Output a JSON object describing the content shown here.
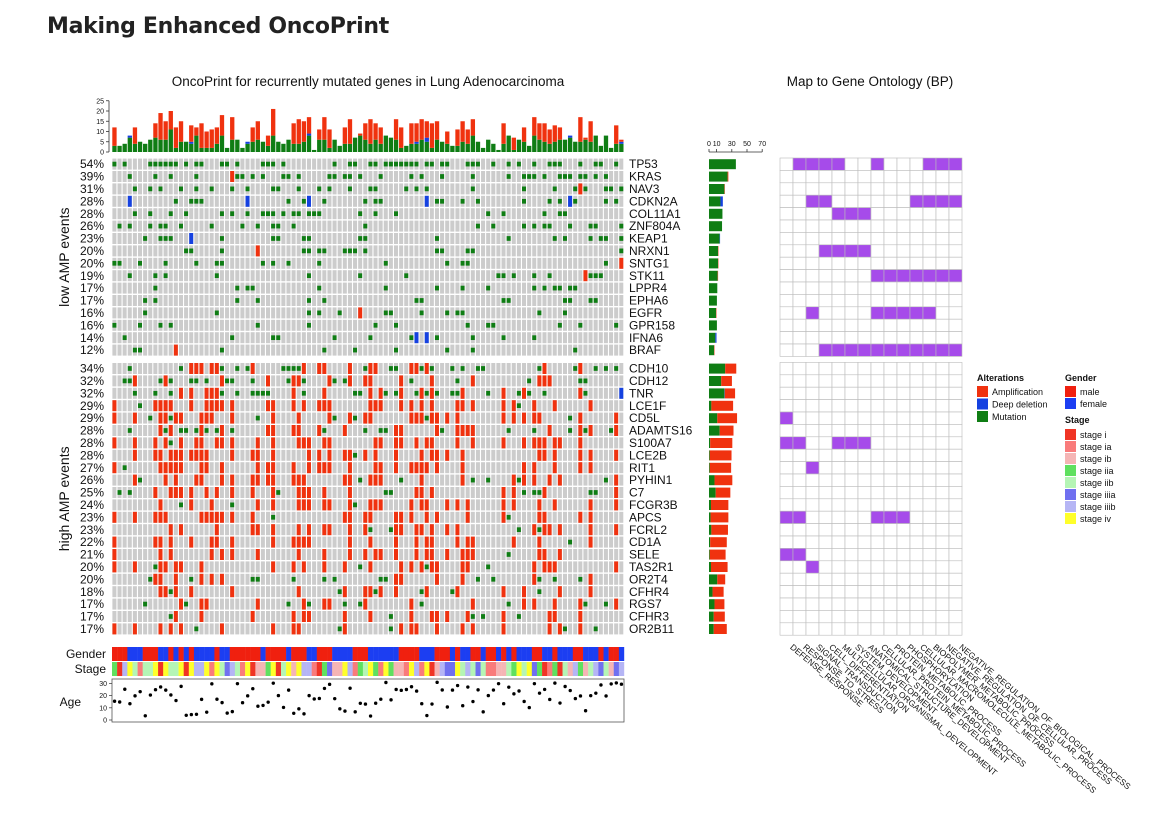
{
  "page": {
    "title": "Making Enhanced OncoPrint"
  },
  "chart_data": [
    {
      "type": "heatmap",
      "title": "OncoPrint for recurrently mutated genes in Lung Adenocarcinoma",
      "n_samples": 100,
      "groups": [
        {
          "label": "low AMP events",
          "genes": [
            "TP53",
            "KRAS",
            "NAV3",
            "CDKN2A",
            "COL11A1",
            "ZNF804A",
            "KEAP1",
            "NRXN1",
            "SNTG1",
            "STK11",
            "LPPR4",
            "EPHA6",
            "EGFR",
            "GPR158",
            "IFNA6",
            "BRAF"
          ],
          "pct": [
            "54%",
            "39%",
            "31%",
            "28%",
            "28%",
            "26%",
            "23%",
            "20%",
            "20%",
            "19%",
            "17%",
            "17%",
            "16%",
            "16%",
            "14%",
            "12%"
          ],
          "amp": [
            0,
            2,
            1,
            0,
            0,
            0,
            0,
            1,
            1,
            1,
            0,
            0,
            1,
            0,
            0,
            1
          ],
          "del": [
            0,
            0,
            0,
            6,
            0,
            0,
            1,
            0,
            0,
            0,
            0,
            0,
            0,
            0,
            3,
            0
          ],
          "mut": [
            68,
            47,
            39,
            29,
            34,
            33,
            27,
            23,
            23,
            22,
            21,
            20,
            18,
            20,
            16,
            13
          ]
        },
        {
          "label": "high AMP events",
          "genes": [
            "CDH10",
            "CDH12",
            "TNR",
            "LCE1F",
            "CD5L",
            "ADAMTS16",
            "S100A7",
            "LCE2B",
            "RIT1",
            "PYHIN1",
            "C7",
            "FCGR3B",
            "APCS",
            "FCRL2",
            "CD1A",
            "SELE",
            "TAS2R1",
            "OR2T4",
            "CFHR4",
            "RGS7",
            "CFHR3",
            "OR2B11"
          ],
          "pct": [
            "34%",
            "32%",
            "32%",
            "29%",
            "29%",
            "28%",
            "28%",
            "28%",
            "27%",
            "26%",
            "25%",
            "24%",
            "23%",
            "23%",
            "22%",
            "21%",
            "20%",
            "20%",
            "18%",
            "17%",
            "17%",
            "17%"
          ],
          "amp": [
            28,
            27,
            26,
            55,
            50,
            35,
            56,
            55,
            54,
            45,
            37,
            44,
            45,
            42,
            42,
            40,
            42,
            20,
            28,
            25,
            28,
            33
          ],
          "del": [
            0,
            0,
            1,
            0,
            0,
            0,
            0,
            0,
            0,
            0,
            0,
            0,
            0,
            0,
            0,
            0,
            0,
            0,
            0,
            0,
            0,
            0
          ],
          "mut": [
            41,
            31,
            39,
            6,
            21,
            27,
            3,
            2,
            2,
            14,
            17,
            5,
            4,
            6,
            3,
            2,
            5,
            21,
            9,
            14,
            12,
            12
          ]
        }
      ],
      "bar_axis_ticks": [
        "0",
        "10",
        "30",
        "50",
        "70"
      ],
      "top_axis_ticks": [
        "0",
        "5",
        "10",
        "15",
        "20",
        "25"
      ],
      "annotations": {
        "gender": {
          "label": "Gender",
          "levels": [
            "male",
            "female"
          ],
          "colors": [
            "#f0200f",
            "#1c3ef2"
          ]
        },
        "stage": {
          "label": "Stage",
          "levels": [
            "stage i",
            "stage ia",
            "stage ib",
            "stage iia",
            "stage iib",
            "stage iiia",
            "stage iiib",
            "stage iv"
          ],
          "colors": [
            "#f03425",
            "#f97b7b",
            "#f5b5b5",
            "#5fe05f",
            "#b5f5b5",
            "#7070f0",
            "#b5b5f5",
            "#ffff2a"
          ]
        },
        "age": {
          "label": "Age",
          "ticks": [
            "0",
            "10",
            "20",
            "30"
          ],
          "ylim": [
            0,
            32
          ]
        }
      },
      "legend": {
        "alterations": {
          "title": "Alterations",
          "items": [
            {
              "label": "Amplification",
              "color": "#f0320f"
            },
            {
              "label": "Deep deletion",
              "color": "#1541e0"
            },
            {
              "label": "Mutation",
              "color": "#0f7d14"
            }
          ]
        },
        "gender_title": "Gender",
        "stage_title": "Stage"
      },
      "colors": {
        "background": "#cccccc",
        "amp": "#f0320f",
        "del": "#1541e0",
        "mut": "#0f7d14"
      }
    },
    {
      "type": "table",
      "title": "Map to Gene Ontology (BP)",
      "columns": [
        "DEFENSE_RESPONSE",
        "RESPONSE_TO_STRESS",
        "SIGNAL_TRANSDUCTION",
        "CELL_DIFFERENTIATION",
        "MULTICELLULAR_ORGANISMAL_DEVELOPMENT",
        "SYSTEM_DEVELOPMENT",
        "ANATOMICAL_STRUCTURE_DEVELOPMENT",
        "CELLULAR_PROTEIN_METABOLIC_PROCESS",
        "PROTEIN_METABOLIC_PROCESS",
        "PHOSPHORYLATION",
        "CELLULAR_MACROMOLECULE_METABOLIC_PROCESS",
        "BIOPOLYMER_METABOLIC_PROCESS",
        "NEGATIVE_REGULATION_OF_CELLULAR_PROCESS",
        "NEGATIVE_REGULATION_OF_BIOLOGICAL_PROCESS"
      ],
      "rows": {
        "TP53": [
          0,
          1,
          1,
          1,
          1,
          0,
          0,
          1,
          0,
          0,
          0,
          1,
          1,
          1
        ],
        "CDKN2A": [
          0,
          0,
          1,
          1,
          0,
          0,
          0,
          0,
          0,
          0,
          1,
          1,
          1,
          1
        ],
        "COL11A1": [
          0,
          0,
          0,
          0,
          1,
          1,
          1,
          0,
          0,
          0,
          0,
          0,
          0,
          0
        ],
        "NRXN1": [
          0,
          0,
          0,
          1,
          1,
          1,
          1,
          0,
          0,
          0,
          0,
          0,
          0,
          0
        ],
        "STK11": [
          0,
          0,
          0,
          0,
          0,
          0,
          0,
          1,
          1,
          1,
          1,
          1,
          1,
          1
        ],
        "EGFR": [
          0,
          0,
          1,
          0,
          0,
          0,
          0,
          1,
          1,
          1,
          1,
          1,
          0,
          0
        ],
        "BRAF": [
          0,
          0,
          0,
          1,
          1,
          1,
          1,
          1,
          1,
          1,
          1,
          1,
          1,
          1
        ],
        "CD5L": [
          1,
          0,
          0,
          0,
          0,
          0,
          0,
          0,
          0,
          0,
          0,
          0,
          0,
          0
        ],
        "S100A7": [
          1,
          1,
          0,
          0,
          1,
          1,
          1,
          0,
          0,
          0,
          0,
          0,
          0,
          0
        ],
        "RIT1": [
          0,
          0,
          1,
          0,
          0,
          0,
          0,
          0,
          0,
          0,
          0,
          0,
          0,
          0
        ],
        "APCS": [
          1,
          1,
          0,
          0,
          0,
          0,
          0,
          1,
          1,
          1,
          0,
          0,
          0,
          0
        ],
        "SELE": [
          1,
          1,
          0,
          0,
          0,
          0,
          0,
          0,
          0,
          0,
          0,
          0,
          0,
          0
        ],
        "TAS2R1": [
          0,
          0,
          1,
          0,
          0,
          0,
          0,
          0,
          0,
          0,
          0,
          0,
          0,
          0
        ]
      },
      "fill_color": "#a64bea"
    }
  ]
}
